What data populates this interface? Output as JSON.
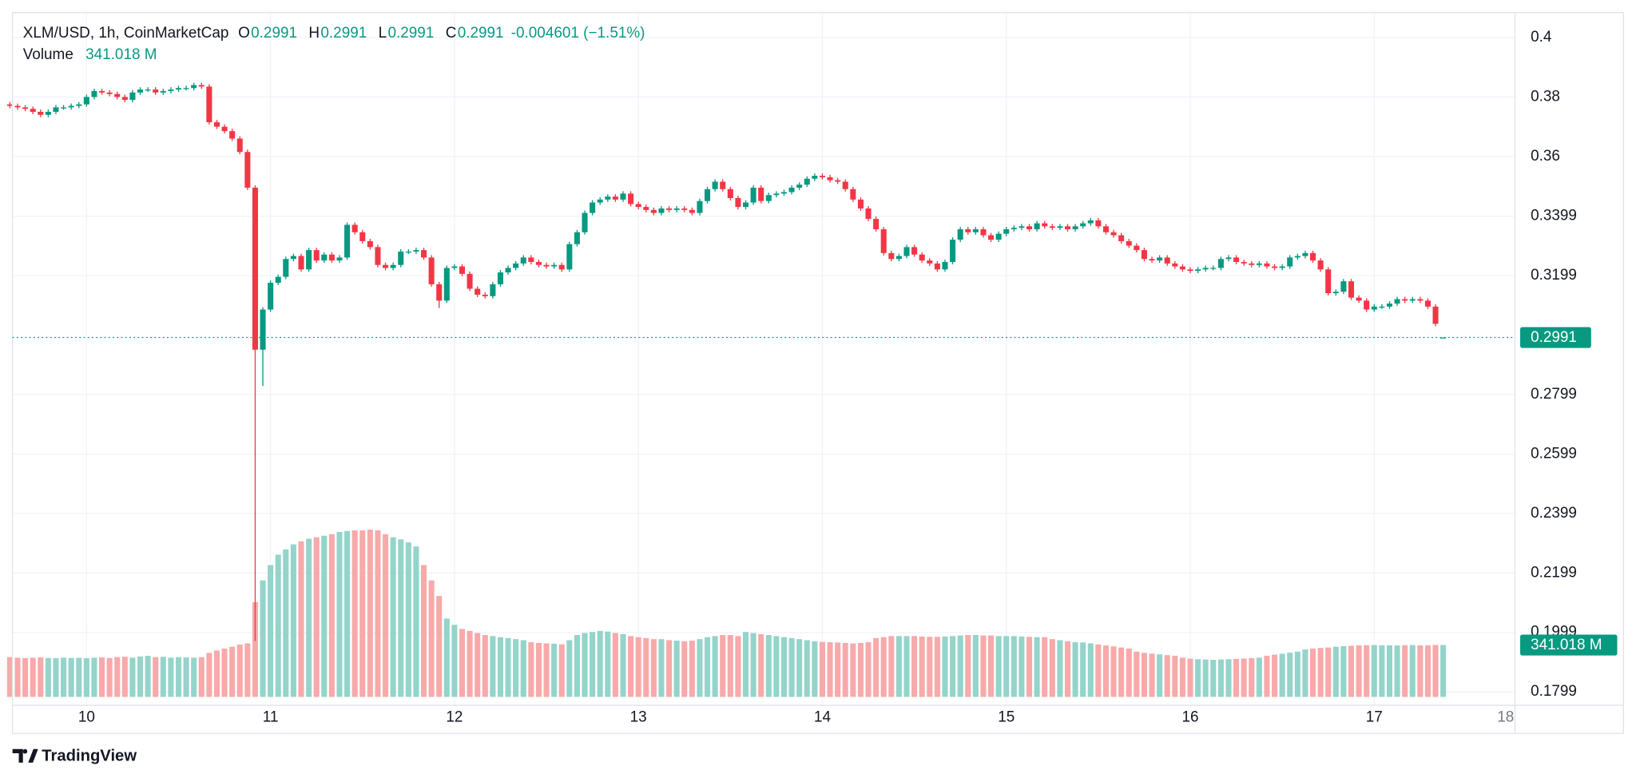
{
  "chart_data": {
    "type": "candlestick",
    "title": "XLM/USD, 1h, CoinMarketCap",
    "legend_items": [
      {
        "label": "O",
        "value": "0.2991"
      },
      {
        "label": "H",
        "value": "0.2991"
      },
      {
        "label": "L",
        "value": "0.2991"
      },
      {
        "label": "C",
        "value": "0.2991"
      }
    ],
    "change": "-0.004601 (−1.51%)",
    "volume_title": "Volume",
    "categories": [
      null,
      null,
      null,
      null,
      null,
      null,
      null,
      null,
      null,
      null,
      "10",
      null,
      null,
      null,
      null,
      null,
      null,
      null,
      null,
      null,
      null,
      null,
      null,
      null,
      null,
      null,
      null,
      null,
      null,
      null,
      null,
      null,
      null,
      null,
      "11",
      null,
      null,
      null,
      null,
      null,
      null,
      null,
      null,
      null,
      null,
      null,
      null,
      null,
      null,
      null,
      null,
      null,
      null,
      null,
      null,
      null,
      null,
      null,
      "12",
      null,
      null,
      null,
      null,
      null,
      null,
      null,
      null,
      null,
      null,
      null,
      null,
      null,
      null,
      null,
      null,
      null,
      null,
      null,
      null,
      null,
      null,
      null,
      "13",
      null,
      null,
      null,
      null,
      null,
      null,
      null,
      null,
      null,
      null,
      null,
      null,
      null,
      null,
      null,
      null,
      null,
      null,
      null,
      null,
      null,
      null,
      null,
      "14",
      null,
      null,
      null,
      null,
      null,
      null,
      null,
      null,
      null,
      null,
      null,
      null,
      null,
      null,
      null,
      null,
      null,
      null,
      null,
      null,
      null,
      null,
      null,
      "15",
      null,
      null,
      null,
      null,
      null,
      null,
      null,
      null,
      null,
      null,
      null,
      null,
      null,
      null,
      null,
      null,
      null,
      null,
      null,
      null,
      null,
      null,
      null,
      "16",
      null,
      null,
      null,
      null,
      null,
      null,
      null,
      null,
      null,
      null,
      null,
      null,
      null,
      null,
      null,
      null,
      null,
      null,
      null,
      null,
      null,
      null,
      null,
      "17",
      null,
      null,
      null,
      null,
      null,
      null,
      null,
      null,
      null
    ],
    "open": [
      0.3775,
      0.377,
      0.3765,
      0.376,
      0.375,
      0.374,
      0.375,
      0.3765,
      0.3765,
      0.377,
      0.3775,
      0.38,
      0.382,
      0.3815,
      0.381,
      0.38,
      0.379,
      0.3815,
      0.3825,
      0.3825,
      0.3815,
      0.382,
      0.3825,
      0.383,
      0.383,
      0.384,
      0.3835,
      0.3715,
      0.37,
      0.3685,
      0.366,
      0.3615,
      0.3495,
      0.295,
      0.3085,
      0.3175,
      0.3195,
      0.3255,
      0.3265,
      0.322,
      0.3285,
      0.325,
      0.327,
      0.325,
      0.326,
      0.337,
      0.3345,
      0.3315,
      0.3295,
      0.3235,
      0.3225,
      0.3235,
      0.328,
      0.328,
      0.3285,
      0.326,
      0.317,
      0.3115,
      0.3225,
      0.323,
      0.3205,
      0.3155,
      0.3135,
      0.313,
      0.317,
      0.321,
      0.3225,
      0.324,
      0.326,
      0.3245,
      0.3235,
      0.323,
      0.3235,
      0.322,
      0.3305,
      0.3345,
      0.341,
      0.3445,
      0.3455,
      0.3465,
      0.3455,
      0.3475,
      0.344,
      0.343,
      0.342,
      0.341,
      0.3425,
      0.342,
      0.3425,
      0.342,
      0.341,
      0.345,
      0.349,
      0.3515,
      0.349,
      0.346,
      0.343,
      0.3445,
      0.3495,
      0.345,
      0.347,
      0.3475,
      0.348,
      0.3495,
      0.3505,
      0.3525,
      0.3535,
      0.353,
      0.352,
      0.3515,
      0.349,
      0.3455,
      0.3425,
      0.339,
      0.3355,
      0.3275,
      0.3255,
      0.3265,
      0.3295,
      0.327,
      0.325,
      0.324,
      0.322,
      0.3245,
      0.332,
      0.3355,
      0.3345,
      0.3355,
      0.3335,
      0.332,
      0.334,
      0.3355,
      0.336,
      0.3365,
      0.3355,
      0.3375,
      0.3365,
      0.336,
      0.3365,
      0.3355,
      0.3365,
      0.3375,
      0.3385,
      0.3365,
      0.3345,
      0.3335,
      0.3315,
      0.33,
      0.3285,
      0.3255,
      0.325,
      0.326,
      0.324,
      0.323,
      0.322,
      0.3215,
      0.322,
      0.3225,
      0.3225,
      0.3255,
      0.326,
      0.3245,
      0.324,
      0.3235,
      0.324,
      0.323,
      0.3225,
      0.323,
      0.326,
      0.3265,
      0.3275,
      0.325,
      0.322,
      0.314,
      0.3145,
      0.318,
      0.3125,
      0.3115,
      0.3085,
      0.3095,
      0.3095,
      0.3105,
      0.312,
      0.3115,
      0.312,
      0.3115,
      0.3095,
      0.2991
    ],
    "high": [
      0.3783,
      0.3778,
      0.3773,
      0.3768,
      0.3758,
      0.3758,
      0.3773,
      0.3773,
      0.3778,
      0.3783,
      0.3808,
      0.3828,
      0.3828,
      0.3823,
      0.3818,
      0.3808,
      0.3823,
      0.3833,
      0.3833,
      0.3833,
      0.3828,
      0.3833,
      0.3838,
      0.3838,
      0.3848,
      0.3848,
      0.3843,
      0.3723,
      0.3708,
      0.3693,
      0.3668,
      0.3623,
      0.3503,
      0.3093,
      0.3183,
      0.3203,
      0.3263,
      0.3273,
      0.3273,
      0.3293,
      0.3293,
      0.3278,
      0.3278,
      0.3268,
      0.3378,
      0.3378,
      0.3353,
      0.3323,
      0.3303,
      0.3243,
      0.3243,
      0.3288,
      0.3288,
      0.3293,
      0.3293,
      0.3268,
      0.3178,
      0.3233,
      0.3238,
      0.3238,
      0.3213,
      0.3163,
      0.3143,
      0.3178,
      0.3218,
      0.3233,
      0.3248,
      0.3268,
      0.3268,
      0.3253,
      0.3243,
      0.3243,
      0.3243,
      0.3313,
      0.3353,
      0.3418,
      0.3453,
      0.3463,
      0.3473,
      0.3473,
      0.3483,
      0.3483,
      0.3448,
      0.3438,
      0.3428,
      0.3433,
      0.3433,
      0.3433,
      0.3433,
      0.3428,
      0.3458,
      0.3498,
      0.3523,
      0.3523,
      0.3498,
      0.3468,
      0.3453,
      0.3503,
      0.3503,
      0.3478,
      0.3483,
      0.3488,
      0.3503,
      0.3513,
      0.3533,
      0.3543,
      0.3543,
      0.3538,
      0.3528,
      0.3523,
      0.3498,
      0.3463,
      0.3433,
      0.3398,
      0.3363,
      0.3283,
      0.3273,
      0.3303,
      0.3303,
      0.3278,
      0.3258,
      0.3248,
      0.3253,
      0.3328,
      0.3363,
      0.3363,
      0.3363,
      0.3363,
      0.3343,
      0.3348,
      0.3363,
      0.3368,
      0.3373,
      0.3373,
      0.3383,
      0.3383,
      0.3373,
      0.3373,
      0.3373,
      0.3373,
      0.3383,
      0.3393,
      0.3393,
      0.3373,
      0.3353,
      0.3343,
      0.3323,
      0.3308,
      0.3293,
      0.3263,
      0.3268,
      0.3268,
      0.3248,
      0.3238,
      0.3228,
      0.3228,
      0.3233,
      0.3233,
      0.3263,
      0.3268,
      0.3268,
      0.3253,
      0.3248,
      0.3248,
      0.3248,
      0.3238,
      0.3238,
      0.3268,
      0.3273,
      0.3283,
      0.3283,
      0.3258,
      0.3228,
      0.3153,
      0.3188,
      0.3188,
      0.3133,
      0.3123,
      0.3103,
      0.3103,
      0.3113,
      0.3128,
      0.3128,
      0.3128,
      0.3128,
      0.3123,
      0.3103,
      0.2991
    ],
    "low": [
      0.3762,
      0.3757,
      0.3752,
      0.3742,
      0.3732,
      0.3732,
      0.3742,
      0.3757,
      0.3757,
      0.3762,
      0.3767,
      0.3792,
      0.3807,
      0.3802,
      0.3792,
      0.3782,
      0.3782,
      0.3807,
      0.3817,
      0.3807,
      0.3807,
      0.3812,
      0.3817,
      0.3822,
      0.3822,
      0.3827,
      0.3707,
      0.3692,
      0.3677,
      0.3652,
      0.3607,
      0.3487,
      0.197,
      0.2828,
      0.3077,
      0.3167,
      0.3187,
      0.3247,
      0.3212,
      0.3212,
      0.3242,
      0.3242,
      0.3242,
      0.3242,
      0.3252,
      0.3337,
      0.3307,
      0.3287,
      0.3227,
      0.3217,
      0.3217,
      0.3227,
      0.3272,
      0.3272,
      0.3252,
      0.3162,
      0.309,
      0.3107,
      0.3217,
      0.3197,
      0.3147,
      0.3127,
      0.3122,
      0.3122,
      0.3162,
      0.3202,
      0.3217,
      0.3232,
      0.3237,
      0.3227,
      0.3222,
      0.3222,
      0.3212,
      0.3212,
      0.3297,
      0.3337,
      0.3402,
      0.3437,
      0.3447,
      0.3447,
      0.3447,
      0.3432,
      0.3422,
      0.3412,
      0.3402,
      0.3402,
      0.3412,
      0.3412,
      0.3412,
      0.3402,
      0.3402,
      0.3442,
      0.3482,
      0.3482,
      0.3452,
      0.3422,
      0.3422,
      0.3437,
      0.3442,
      0.3442,
      0.3462,
      0.3467,
      0.3472,
      0.3487,
      0.3497,
      0.3517,
      0.3522,
      0.3512,
      0.3507,
      0.3482,
      0.3447,
      0.3417,
      0.3382,
      0.3347,
      0.3267,
      0.3247,
      0.3247,
      0.3257,
      0.3262,
      0.3242,
      0.3232,
      0.3212,
      0.3212,
      0.3237,
      0.3312,
      0.3337,
      0.3337,
      0.3327,
      0.3312,
      0.3312,
      0.3332,
      0.3347,
      0.3352,
      0.3347,
      0.3347,
      0.3357,
      0.3352,
      0.3352,
      0.3347,
      0.3347,
      0.3357,
      0.3367,
      0.3357,
      0.3337,
      0.3327,
      0.3307,
      0.3292,
      0.3277,
      0.3247,
      0.3242,
      0.3242,
      0.3232,
      0.3222,
      0.3212,
      0.3207,
      0.3207,
      0.3212,
      0.3217,
      0.3217,
      0.3247,
      0.3237,
      0.3232,
      0.3227,
      0.3227,
      0.3222,
      0.3217,
      0.3217,
      0.3222,
      0.3252,
      0.3257,
      0.3242,
      0.3212,
      0.3132,
      0.3132,
      0.3137,
      0.3117,
      0.3107,
      0.3077,
      0.3077,
      0.3087,
      0.3087,
      0.3097,
      0.3107,
      0.3107,
      0.3107,
      0.3087,
      0.3029,
      0.2991
    ],
    "close": [
      0.377,
      0.3765,
      0.376,
      0.375,
      0.374,
      0.375,
      0.3765,
      0.3765,
      0.377,
      0.3775,
      0.38,
      0.382,
      0.3815,
      0.381,
      0.38,
      0.379,
      0.3815,
      0.3825,
      0.3825,
      0.3815,
      0.382,
      0.3825,
      0.383,
      0.383,
      0.384,
      0.3835,
      0.3715,
      0.37,
      0.3685,
      0.366,
      0.3615,
      0.3495,
      0.295,
      0.3085,
      0.3175,
      0.3195,
      0.3255,
      0.3265,
      0.322,
      0.3285,
      0.325,
      0.327,
      0.325,
      0.326,
      0.337,
      0.3345,
      0.3315,
      0.3295,
      0.3235,
      0.3225,
      0.3235,
      0.328,
      0.328,
      0.3285,
      0.326,
      0.317,
      0.3115,
      0.3225,
      0.323,
      0.3205,
      0.3155,
      0.3135,
      0.313,
      0.317,
      0.321,
      0.3225,
      0.324,
      0.326,
      0.3245,
      0.3235,
      0.323,
      0.3235,
      0.322,
      0.3305,
      0.3345,
      0.341,
      0.3445,
      0.3455,
      0.3465,
      0.3455,
      0.3475,
      0.344,
      0.343,
      0.342,
      0.341,
      0.3425,
      0.342,
      0.3425,
      0.342,
      0.341,
      0.345,
      0.349,
      0.3515,
      0.349,
      0.346,
      0.343,
      0.3445,
      0.3495,
      0.345,
      0.347,
      0.3475,
      0.348,
      0.3495,
      0.3505,
      0.3525,
      0.3535,
      0.353,
      0.352,
      0.3515,
      0.349,
      0.3455,
      0.3425,
      0.339,
      0.3355,
      0.3275,
      0.3255,
      0.3265,
      0.3295,
      0.327,
      0.325,
      0.324,
      0.322,
      0.3245,
      0.332,
      0.3355,
      0.3345,
      0.3355,
      0.3335,
      0.332,
      0.334,
      0.3355,
      0.336,
      0.3365,
      0.3355,
      0.3375,
      0.3365,
      0.336,
      0.3365,
      0.3355,
      0.3365,
      0.3375,
      0.3385,
      0.3365,
      0.3345,
      0.3335,
      0.3315,
      0.33,
      0.3285,
      0.3255,
      0.325,
      0.326,
      0.324,
      0.323,
      0.322,
      0.3215,
      0.322,
      0.3225,
      0.3225,
      0.3255,
      0.326,
      0.3245,
      0.324,
      0.3235,
      0.324,
      0.323,
      0.3225,
      0.323,
      0.326,
      0.3265,
      0.3275,
      0.325,
      0.322,
      0.314,
      0.3145,
      0.318,
      0.3125,
      0.3115,
      0.3085,
      0.3095,
      0.3095,
      0.3105,
      0.312,
      0.3115,
      0.312,
      0.3115,
      0.3095,
      0.3037,
      0.2991
    ],
    "volume": [
      262,
      258,
      255,
      258,
      260,
      256,
      255,
      258,
      256,
      257,
      255,
      258,
      260,
      256,
      262,
      264,
      258,
      266,
      270,
      262,
      264,
      258,
      262,
      260,
      258,
      262,
      290,
      305,
      318,
      330,
      345,
      352,
      623,
      766,
      867,
      935,
      970,
      1003,
      1023,
      1040,
      1050,
      1060,
      1070,
      1085,
      1091,
      1095,
      1095,
      1100,
      1095,
      1070,
      1050,
      1036,
      1016,
      989,
      867,
      766,
      664,
      515,
      474,
      447,
      434,
      420,
      407,
      400,
      393,
      387,
      380,
      373,
      360,
      355,
      352,
      350,
      346,
      373,
      407,
      420,
      427,
      434,
      430,
      420,
      413,
      400,
      393,
      387,
      380,
      380,
      373,
      370,
      366,
      370,
      380,
      393,
      400,
      407,
      407,
      400,
      427,
      420,
      413,
      407,
      400,
      393,
      387,
      380,
      373,
      366,
      362,
      360,
      358,
      355,
      352,
      355,
      360,
      387,
      393,
      400,
      400,
      400,
      400,
      397,
      395,
      395,
      397,
      400,
      404,
      407,
      407,
      404,
      404,
      400,
      400,
      400,
      397,
      395,
      393,
      393,
      380,
      373,
      366,
      360,
      358,
      352,
      345,
      338,
      332,
      325,
      318,
      298,
      290,
      285,
      280,
      275,
      271,
      258,
      252,
      248,
      246,
      244,
      246,
      248,
      250,
      252,
      255,
      258,
      271,
      278,
      284,
      291,
      298,
      312,
      318,
      322,
      325,
      330,
      334,
      336,
      339,
      340,
      341,
      340,
      339,
      338,
      340,
      341,
      339,
      340,
      342,
      341.018
    ],
    "volume_lim": [
      0,
      4500
    ],
    "up_color": "#089981",
    "down_color": "#f23645",
    "volume_up_color": "#94d4ca",
    "volume_down_color": "#f8a9aa",
    "ylim": [
      0.1754,
      0.4084
    ],
    "yticks": [
      0.4,
      0.38,
      0.36,
      0.3399,
      0.3199,
      0.2799,
      0.2599,
      0.2399,
      0.2199,
      0.1999,
      0.1799
    ],
    "grid": true,
    "last_price": 0.2991,
    "last_volume": {
      "value": 341.018,
      "label": "341.018 M"
    },
    "x_end_label": "18"
  },
  "footer": {
    "brand": "TradingView"
  }
}
